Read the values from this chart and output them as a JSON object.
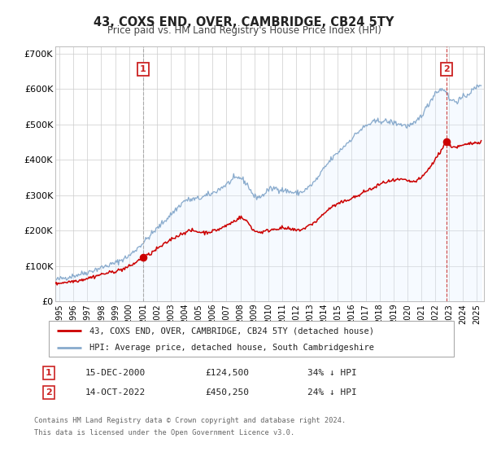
{
  "title": "43, COXS END, OVER, CAMBRIDGE, CB24 5TY",
  "subtitle": "Price paid vs. HM Land Registry's House Price Index (HPI)",
  "background_color": "#ffffff",
  "plot_background": "#ffffff",
  "grid_color": "#cccccc",
  "red_color": "#cc0000",
  "blue_color": "#88aacc",
  "blue_fill": "#ddeeff",
  "marker1_date": 2001.0,
  "marker1_value": 124500,
  "marker2_date": 2022.79,
  "marker2_value": 450250,
  "marker1_text": "15-DEC-2000",
  "marker1_price": "£124,500",
  "marker1_note": "34% ↓ HPI",
  "marker2_text": "14-OCT-2022",
  "marker2_price": "£450,250",
  "marker2_note": "24% ↓ HPI",
  "legend_line1": "43, COXS END, OVER, CAMBRIDGE, CB24 5TY (detached house)",
  "legend_line2": "HPI: Average price, detached house, South Cambridgeshire",
  "footer1": "Contains HM Land Registry data © Crown copyright and database right 2024.",
  "footer2": "This data is licensed under the Open Government Licence v3.0.",
  "xmin": 1994.7,
  "xmax": 2025.5,
  "ymin": 0,
  "ymax": 720000,
  "yticks": [
    0,
    100000,
    200000,
    300000,
    400000,
    500000,
    600000,
    700000
  ],
  "ytick_labels": [
    "£0",
    "£100K",
    "£200K",
    "£300K",
    "£400K",
    "£500K",
    "£600K",
    "£700K"
  ],
  "xticks": [
    1995,
    1996,
    1997,
    1998,
    1999,
    2000,
    2001,
    2002,
    2003,
    2004,
    2005,
    2006,
    2007,
    2008,
    2009,
    2010,
    2011,
    2012,
    2013,
    2014,
    2015,
    2016,
    2017,
    2018,
    2019,
    2020,
    2021,
    2022,
    2023,
    2024,
    2025
  ]
}
